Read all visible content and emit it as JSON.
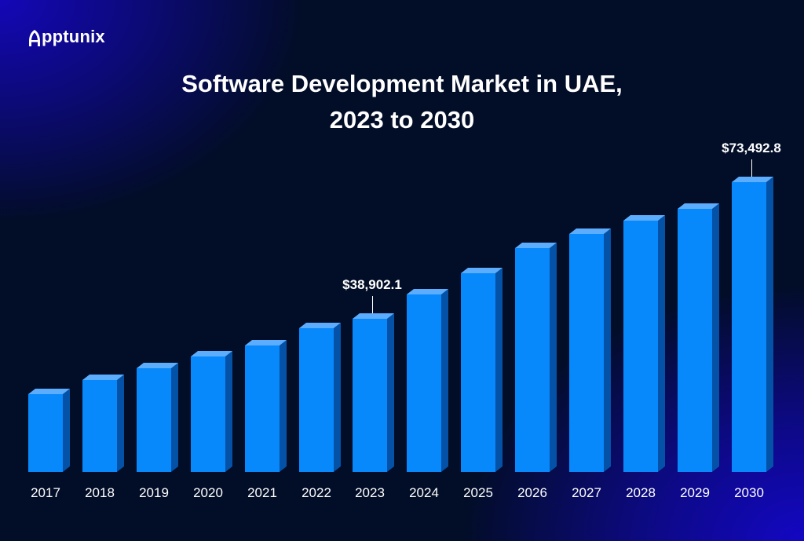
{
  "brand": {
    "name": "Apptunix"
  },
  "colors": {
    "bar_front": "#0788fb",
    "bar_top": "#5cadfd",
    "bar_side": "#0452a8",
    "background": "#020d27",
    "accent_gradient": "#1407b8"
  },
  "chart_data": {
    "type": "bar",
    "title": "Software Development Market in UAE, 2023 to 2030",
    "title_lines": [
      "Software Development Market in UAE,",
      "2023 to 2030"
    ],
    "xlabel": "",
    "ylabel": "",
    "grid": false,
    "legend": null,
    "categories": [
      "2017",
      "2018",
      "2019",
      "2020",
      "2021",
      "2022",
      "2023",
      "2024",
      "2025",
      "2026",
      "2027",
      "2028",
      "2029",
      "2030"
    ],
    "values": [
      19700,
      23400,
      26300,
      29300,
      32000,
      36500,
      38902.1,
      45000,
      50400,
      56800,
      60300,
      63700,
      66800,
      73492.8
    ],
    "annotations": [
      {
        "category": "2023",
        "label": "$38,902.1"
      },
      {
        "category": "2030",
        "label": "$73,492.8"
      }
    ],
    "ylim": [
      0,
      75000
    ]
  }
}
